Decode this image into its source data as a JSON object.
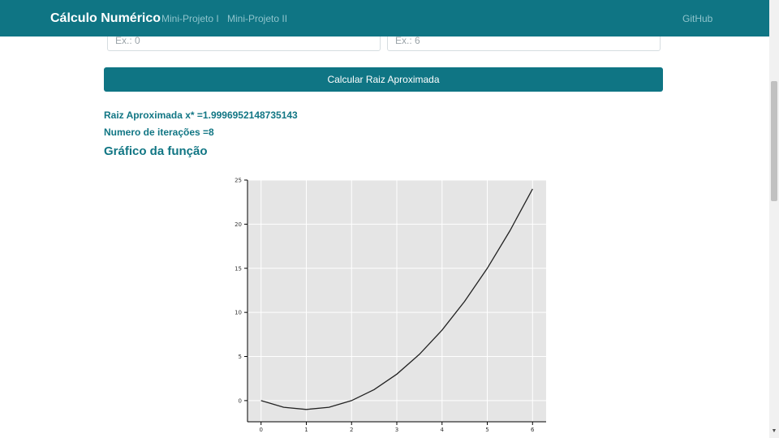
{
  "navbar": {
    "brand": "Cálculo Numérico",
    "links": [
      "Mini-Projeto I",
      "Mini-Projeto II"
    ],
    "github": "GitHub"
  },
  "form": {
    "input_a_placeholder": "Ex.: 0",
    "input_b_placeholder": "Ex.: 6",
    "calc_button": "Calcular Raiz Aproximada"
  },
  "results": {
    "root_text": "Raiz Aproximada x* =1.9996952148735143",
    "iterations_text": "Numero de iterações =8"
  },
  "section_title": "Gráfico da função",
  "colors": {
    "primary": "#0f7584",
    "result_text": "#117684",
    "plot_bg": "#e5e5e5"
  },
  "chart_data": {
    "type": "line",
    "title": "",
    "xlabel": "",
    "ylabel": "",
    "xlim": [
      -0.3,
      6.3
    ],
    "ylim": [
      -2.4,
      25
    ],
    "x_ticks": [
      0,
      1,
      2,
      3,
      4,
      5,
      6
    ],
    "y_ticks": [
      0,
      5,
      10,
      15,
      20,
      25
    ],
    "grid": true,
    "series": [
      {
        "x": [
          0,
          0.5,
          1,
          1.5,
          2,
          2.5,
          3,
          3.5,
          4,
          4.5,
          5,
          5.5,
          6
        ],
        "y": [
          0,
          -0.75,
          -1,
          -0.75,
          0,
          1.25,
          3,
          5.25,
          8,
          11.25,
          15,
          19.25,
          24
        ]
      }
    ]
  }
}
